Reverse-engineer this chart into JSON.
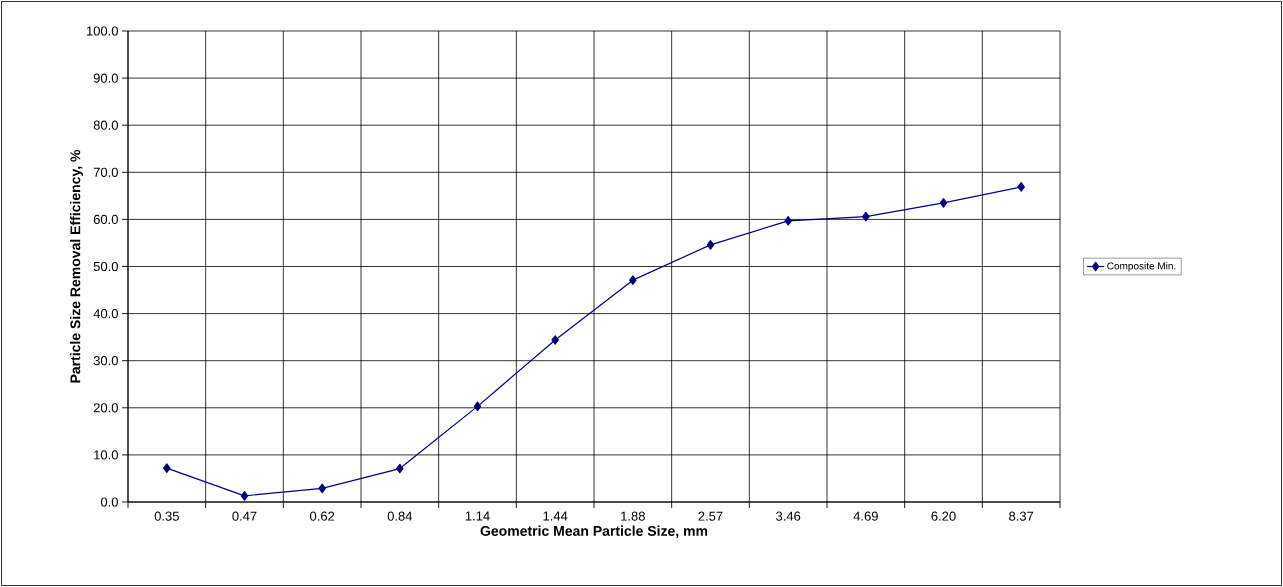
{
  "chart_data": {
    "type": "line",
    "xlabel": "Geometric Mean Particle Size, mm",
    "ylabel": "Particle Size Removal Efficiency, %",
    "categories": [
      "0.35",
      "0.47",
      "0.62",
      "0.84",
      "1.14",
      "1.44",
      "1.88",
      "2.57",
      "3.46",
      "4.69",
      "6.20",
      "8.37"
    ],
    "series": [
      {
        "name": "Composite Min.",
        "color": "#000080",
        "values": [
          7.2,
          1.3,
          2.9,
          7.1,
          20.3,
          34.4,
          47.1,
          54.6,
          59.7,
          60.6,
          63.5,
          66.9
        ]
      }
    ],
    "ylim": [
      0,
      100
    ],
    "yticks": [
      {
        "value": 0,
        "label": "0.0"
      },
      {
        "value": 10,
        "label": "10.0"
      },
      {
        "value": 20,
        "label": "20.0"
      },
      {
        "value": 30,
        "label": "30.0"
      },
      {
        "value": 40,
        "label": "40.0"
      },
      {
        "value": 50,
        "label": "50.0"
      },
      {
        "value": 60,
        "label": "60.0"
      },
      {
        "value": 70,
        "label": "70.0"
      },
      {
        "value": 80,
        "label": "80.0"
      },
      {
        "value": 90,
        "label": "90.0"
      },
      {
        "value": 100,
        "label": "100.0"
      }
    ],
    "grid": true,
    "legend": "right",
    "marker": "diamond",
    "line_style": "solid"
  }
}
